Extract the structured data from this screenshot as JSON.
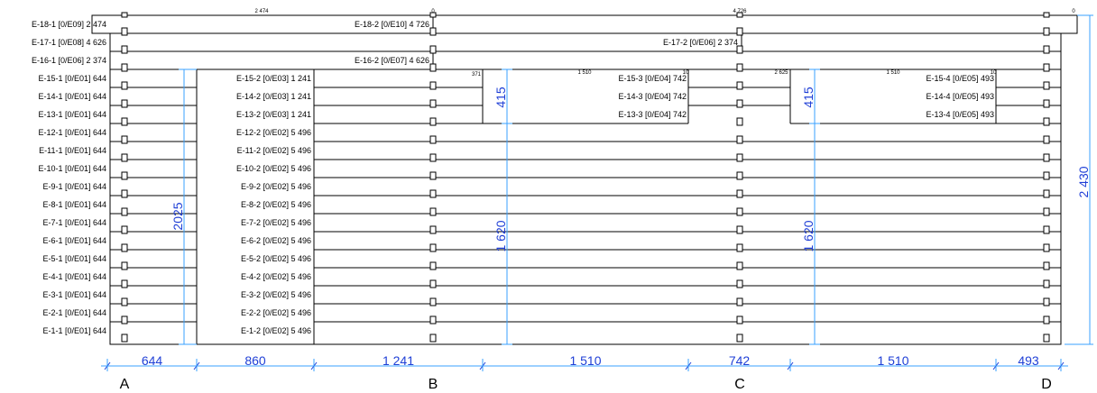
{
  "colors": {
    "dimension_line": "#3aa0ff",
    "dimension_text": "#1f3fd6",
    "outline": "#000000"
  },
  "top_strip": {
    "left_value": "2 474",
    "mid_value": "0",
    "right_value": "4 726",
    "end_value": "0"
  },
  "opening_small_values": {
    "v1": "371",
    "v2": "1 510",
    "v3": "10",
    "v4": "2 625",
    "v5": "1 510",
    "v6": "10"
  },
  "col1_labels": [
    "E-18-1 [0/E09] 2 474",
    "E-17-1 [0/E08] 4 626",
    "E-16-1 [0/E06] 2 374",
    "E-15-1 [0/E01] 644",
    "E-14-1 [0/E01] 644",
    "E-13-1 [0/E01] 644",
    "E-12-1 [0/E01] 644",
    "E-11-1 [0/E01] 644",
    "E-10-1 [0/E01] 644",
    "E-9-1 [0/E01] 644",
    "E-8-1 [0/E01] 644",
    "E-7-1 [0/E01] 644",
    "E-6-1 [0/E01] 644",
    "E-5-1 [0/E01] 644",
    "E-4-1 [0/E01] 644",
    "E-3-1 [0/E01] 644",
    "E-2-1 [0/E01] 644",
    "E-1-1 [0/E01] 644"
  ],
  "col2_labels": [
    "E-18-2 [0/E10] 4 726",
    "E-16-2 [0/E07] 4 626",
    "E-15-2 [0/E03] 1 241",
    "E-14-2 [0/E03] 1 241",
    "E-13-2 [0/E03] 1 241",
    "E-12-2 [0/E02] 5 496",
    "E-11-2 [0/E02] 5 496",
    "E-10-2 [0/E02] 5 496",
    "E-9-2 [0/E02] 5 496",
    "E-8-2 [0/E02] 5 496",
    "E-7-2 [0/E02] 5 496",
    "E-6-2 [0/E02] 5 496",
    "E-5-2 [0/E02] 5 496",
    "E-4-2 [0/E02] 5 496",
    "E-3-2 [0/E02] 5 496",
    "E-2-2 [0/E02] 5 496",
    "E-1-2 [0/E02] 5 496"
  ],
  "col3_labels": [
    "E-17-2 [0/E06] 2 374",
    "E-15-3 [0/E04] 742",
    "E-14-3 [0/E04] 742",
    "E-13-3 [0/E04] 742"
  ],
  "col4_labels": [
    "E-15-4 [0/E05] 493",
    "E-14-4 [0/E05] 493",
    "E-13-4 [0/E05] 493"
  ],
  "vertical_dims": {
    "gap_height": "2025",
    "opening1_upper": "415",
    "opening1_lower": "1 620",
    "opening2_upper": "415",
    "opening2_lower": "1 620",
    "total_height": "2 430"
  },
  "bottom_dims": [
    "644",
    "860",
    "1 241",
    "1 510",
    "742",
    "1 510",
    "493"
  ],
  "axes": [
    "A",
    "B",
    "C",
    "D"
  ]
}
